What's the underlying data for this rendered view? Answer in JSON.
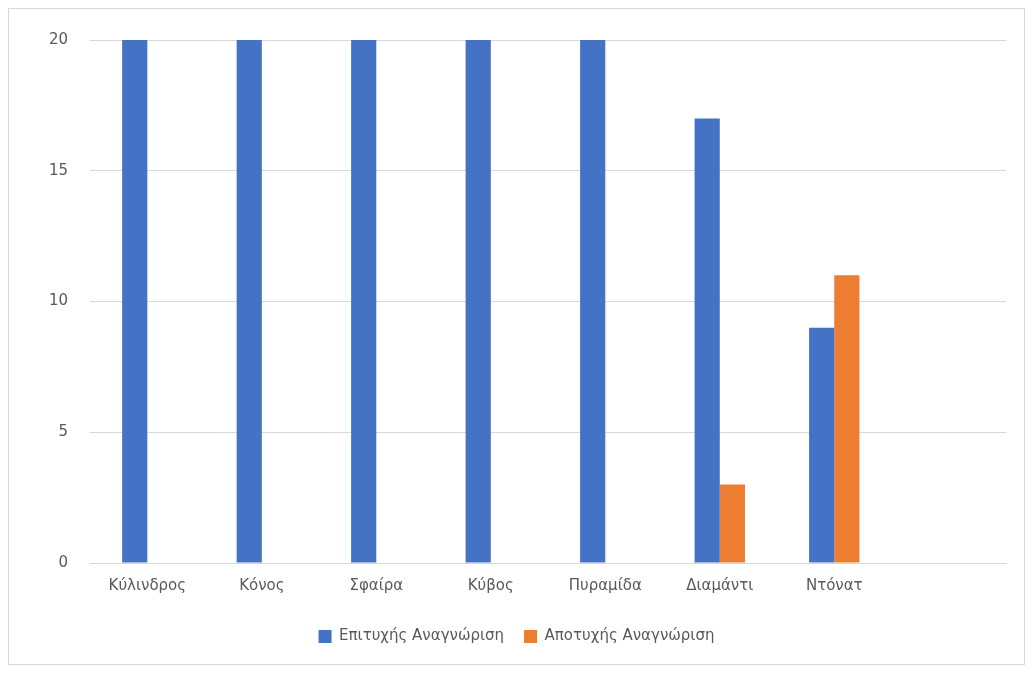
{
  "chart_data": {
    "type": "bar",
    "categories": [
      "Κύλινδρος",
      "Κόνος",
      "Σφαίρα",
      "Κύβος",
      "Πυραμίδα",
      "Διαμάντι",
      "Ντόνατ",
      null
    ],
    "series": [
      {
        "name": "Επιτυχής Αναγνώριση",
        "color": "#4472c4",
        "values": [
          20,
          20,
          20,
          20,
          20,
          17,
          9,
          null
        ]
      },
      {
        "name": "Αποτυχής Αναγνώριση",
        "color": "#ed7d31",
        "values": [
          0,
          0,
          0,
          0,
          0,
          3,
          11,
          null
        ]
      }
    ],
    "ylim": [
      0,
      20
    ],
    "yticks": [
      0,
      5,
      10,
      15,
      20
    ],
    "grid": "y",
    "legend": "bottom"
  }
}
